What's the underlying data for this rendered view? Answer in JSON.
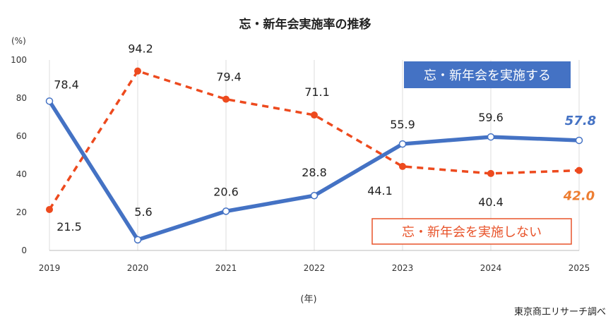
{
  "chart_data": {
    "type": "line",
    "title": "忘・新年会実施率の推移",
    "ylabel": "(%)",
    "xlabel": "(年)",
    "ylim": [
      0,
      100
    ],
    "yticks": [
      0,
      20,
      40,
      60,
      80,
      100
    ],
    "categories": [
      "2019",
      "2020",
      "2021",
      "2022",
      "2023",
      "2024",
      "2025"
    ],
    "series": [
      {
        "name": "忘・新年会を実施する",
        "color": "#4472c4",
        "values": [
          78.4,
          5.6,
          20.6,
          28.8,
          55.9,
          59.6,
          57.8
        ],
        "labels": [
          "78.4",
          "5.6",
          "20.6",
          "28.8",
          "55.9",
          "59.6",
          "57.8"
        ]
      },
      {
        "name": "忘・新年会を実施しない",
        "color": "#ed4a1e",
        "values": [
          21.5,
          94.2,
          79.4,
          71.1,
          44.1,
          40.4,
          42.0
        ],
        "labels": [
          "21.5",
          "94.2",
          "79.4",
          "71.1",
          "44.1",
          "40.4",
          "42.0"
        ]
      }
    ],
    "source": "東京商工リサーチ調べ"
  }
}
